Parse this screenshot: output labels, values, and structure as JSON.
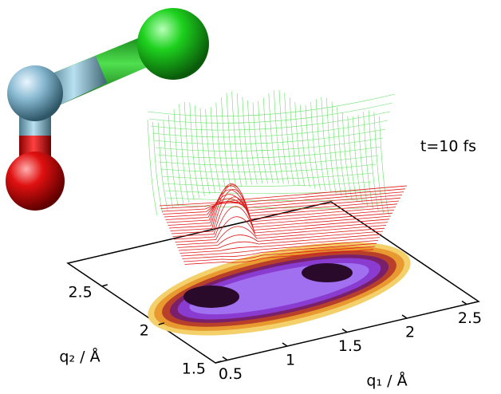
{
  "chart_data": {
    "type": "surface3d",
    "annotation": "t=10 fs",
    "xlabel": "q₁ / Å",
    "ylabel": "q₂ / Å",
    "xlim": [
      0.4,
      2.6
    ],
    "xticks": [
      0.5,
      1.0,
      1.5,
      2.0,
      2.5
    ],
    "ylim": [
      1.5,
      2.8
    ],
    "yticks": [
      1.5,
      2.0,
      2.5
    ]
  }
}
